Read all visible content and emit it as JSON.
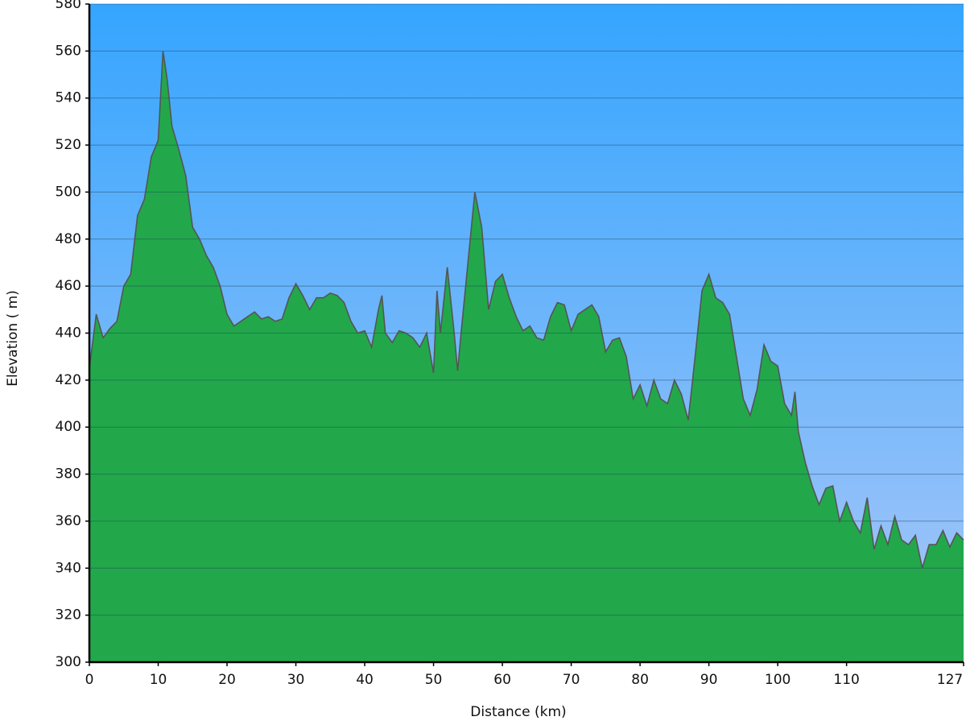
{
  "chart_data": {
    "type": "area",
    "x_label": "Distance (km)",
    "y_label": "Elevation ( m)",
    "xlim": [
      0,
      127
    ],
    "xticks": [
      0,
      10,
      20,
      30,
      40,
      50,
      60,
      70,
      80,
      90,
      100,
      110,
      127
    ],
    "ylim": [
      300,
      580
    ],
    "yticks": [
      300,
      320,
      340,
      360,
      380,
      400,
      420,
      440,
      460,
      480,
      500,
      520,
      540,
      560,
      580
    ],
    "grid": true,
    "color": "#22a84a",
    "line_color": "#555555",
    "x": [
      0,
      1,
      2,
      3,
      4,
      5,
      6,
      7,
      8,
      9,
      10,
      10.7,
      11.3,
      12,
      13,
      14,
      15,
      16,
      17,
      18,
      19,
      20,
      21,
      22,
      23,
      24,
      25,
      26,
      27,
      28,
      29,
      30,
      31,
      32,
      33,
      34,
      35,
      36,
      37,
      38,
      39,
      40,
      41,
      42,
      42.5,
      43,
      44,
      45,
      46,
      47,
      48,
      49,
      50,
      50.5,
      51,
      52,
      53,
      53.5,
      54,
      55,
      56,
      57,
      58,
      59,
      60,
      61,
      62,
      63,
      64,
      65,
      66,
      67,
      68,
      69,
      70,
      71,
      72,
      73,
      74,
      75,
      76,
      77,
      78,
      79,
      80,
      81,
      82,
      83,
      84,
      85,
      86,
      87,
      88,
      89,
      90,
      91,
      92,
      93,
      94,
      95,
      96,
      97,
      98,
      99,
      100,
      101,
      102,
      102.5,
      103,
      104,
      105,
      106,
      107,
      108,
      109,
      110,
      111,
      112,
      113,
      114,
      115,
      116,
      117,
      118,
      119,
      120,
      121,
      122,
      123,
      124,
      125,
      126,
      127
    ],
    "values": [
      425,
      448,
      438,
      442,
      445,
      460,
      465,
      490,
      497,
      515,
      522,
      560,
      548,
      528,
      518,
      507,
      485,
      480,
      473,
      468,
      460,
      448,
      443,
      445,
      447,
      449,
      446,
      447,
      445,
      446,
      455,
      461,
      456,
      450,
      455,
      455,
      457,
      456,
      453,
      445,
      440,
      441,
      434,
      450,
      456,
      440,
      436,
      441,
      440,
      438,
      434,
      440,
      423,
      458,
      440,
      468,
      440,
      424,
      440,
      470,
      500,
      485,
      450,
      462,
      465,
      455,
      447,
      441,
      443,
      438,
      437,
      447,
      453,
      452,
      441,
      448,
      450,
      452,
      447,
      432,
      437,
      438,
      430,
      412,
      418,
      409,
      420,
      412,
      410,
      420,
      414,
      403,
      430,
      458,
      465,
      455,
      453,
      448,
      430,
      412,
      405,
      416,
      435,
      428,
      426,
      410,
      405,
      415,
      398,
      385,
      375,
      367,
      374,
      375,
      360,
      368,
      360,
      355,
      370,
      348,
      358,
      350,
      362,
      352,
      350,
      354,
      340,
      350,
      350,
      356,
      349,
      355,
      352
    ]
  }
}
